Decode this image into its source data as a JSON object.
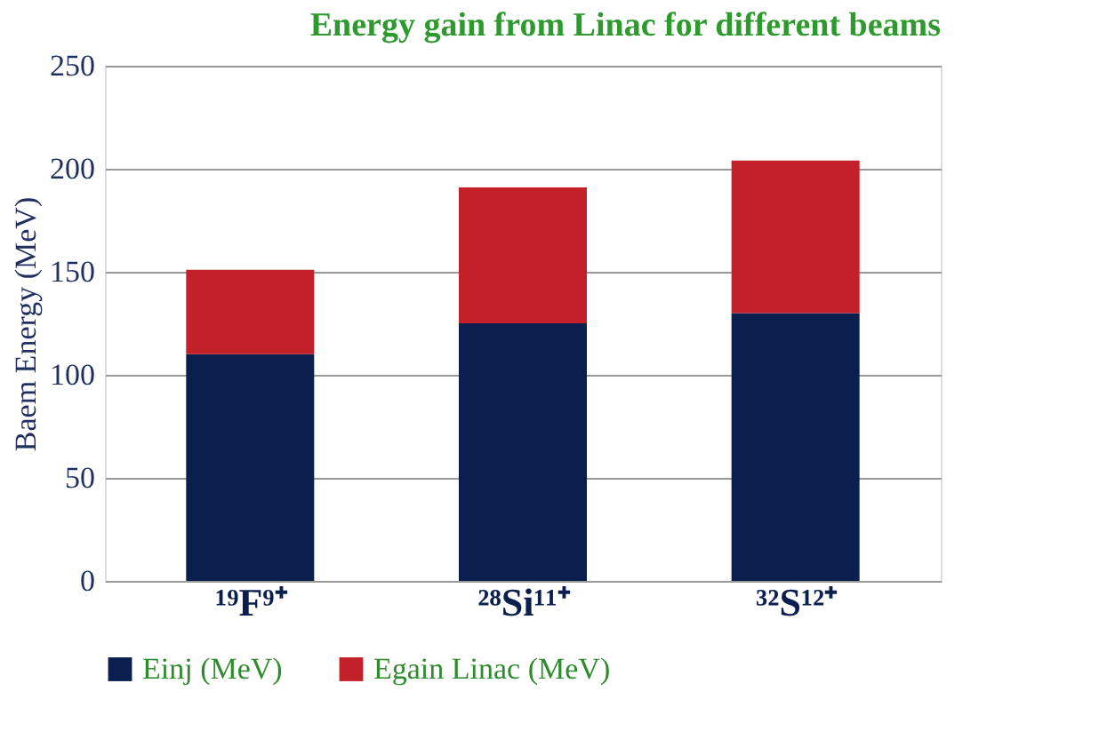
{
  "chart_data": {
    "type": "bar",
    "title": "Energy gain from Linac for different beams",
    "ylabel": "Baem Energy (MeV)",
    "categories": [
      "¹⁹F⁹⁺",
      "²⁸Si¹¹⁺",
      "³²S¹²⁺"
    ],
    "series": [
      {
        "name": "Einj (MeV)",
        "color": "#0b1f4e",
        "values": [
          110,
          125,
          130
        ]
      },
      {
        "name": "Egain Linac (MeV)",
        "color": "#c3202a",
        "values": [
          41,
          66,
          74
        ]
      }
    ],
    "stacked": true,
    "ylim": [
      0,
      250
    ],
    "yticks": [
      0,
      50,
      100,
      150,
      200,
      250
    ],
    "grid": "y",
    "legend": "bottom"
  }
}
